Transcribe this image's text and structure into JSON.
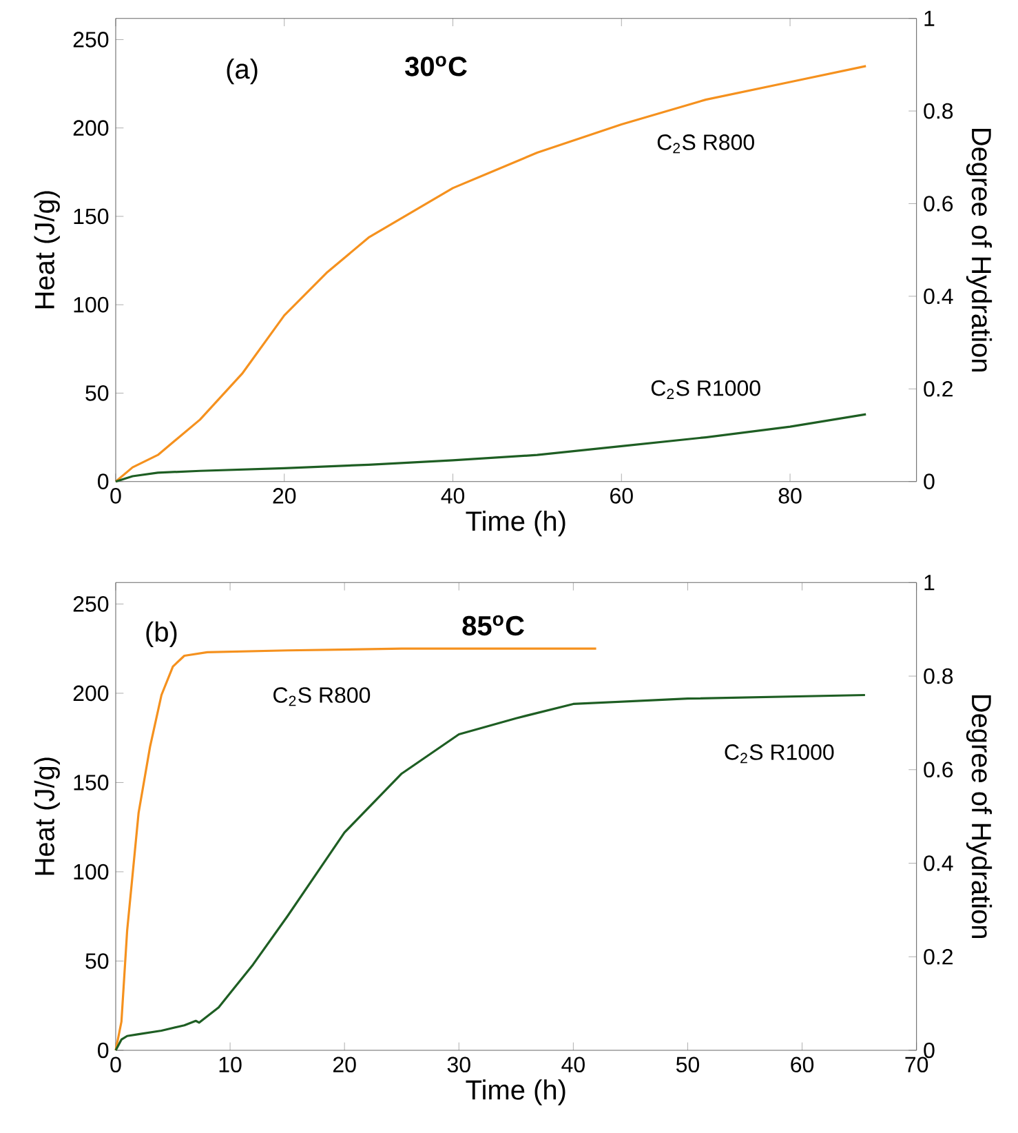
{
  "chart_data": [
    {
      "type": "line",
      "title": "30$^{o}$C",
      "annotations": [
        "(a)"
      ],
      "xlabel": "Time (h)",
      "ylabel": "Heat (J/g)",
      "y2label": "Degree of Hydration",
      "xlim": [
        0,
        95
      ],
      "ylim": [
        0,
        262
      ],
      "y2lim": [
        0,
        1
      ],
      "xticks": [
        0,
        20,
        40,
        60,
        80
      ],
      "yticks": [
        0,
        50,
        100,
        150,
        200,
        250
      ],
      "y2ticks": [
        0,
        0.2,
        0.4,
        0.6,
        0.8,
        1
      ],
      "series": [
        {
          "name": "C$_{2}$S R800",
          "color": "#f5911e",
          "x": [
            0,
            2,
            5,
            10,
            15,
            20,
            25,
            30,
            40,
            50,
            60,
            70,
            80,
            89
          ],
          "values": [
            0,
            8,
            15,
            35,
            61,
            94,
            118,
            138,
            166,
            186,
            202,
            216,
            226,
            235
          ]
        },
        {
          "name": "C$_{2}$S R1000",
          "color": "#1e5e23",
          "x": [
            0,
            2,
            5,
            10,
            20,
            30,
            40,
            50,
            60,
            70,
            80,
            89
          ],
          "values": [
            0,
            3,
            5,
            6,
            7.5,
            9.5,
            12,
            15,
            20,
            25,
            31,
            38
          ]
        }
      ]
    },
    {
      "type": "line",
      "title": "85$^{o}$C",
      "annotations": [
        "(b)"
      ],
      "xlabel": "Time (h)",
      "ylabel": "Heat (J/g)",
      "y2label": "Degree of Hydration",
      "xlim": [
        0,
        70
      ],
      "ylim": [
        0,
        262
      ],
      "y2lim": [
        0,
        1
      ],
      "xticks": [
        0,
        10,
        20,
        30,
        40,
        50,
        60,
        70
      ],
      "yticks": [
        0,
        50,
        100,
        150,
        200,
        250
      ],
      "y2ticks": [
        0,
        0.2,
        0.4,
        0.6,
        0.8,
        1
      ],
      "series": [
        {
          "name": "C$_{2}$S R800",
          "color": "#f5911e",
          "x": [
            0,
            0.5,
            1,
            2,
            3,
            4,
            5,
            6,
            8,
            15,
            25,
            42
          ],
          "values": [
            0,
            16,
            67,
            133,
            170,
            199,
            215,
            221,
            223,
            224,
            225,
            225
          ]
        },
        {
          "name": "C$_{2}$S R1000",
          "color": "#1e5e23",
          "x": [
            0,
            0.5,
            1,
            2,
            4,
            6,
            7,
            7.3,
            9,
            10,
            12,
            15,
            20,
            25,
            30,
            35,
            40,
            50,
            65.5
          ],
          "values": [
            0,
            6,
            8,
            9,
            11,
            14,
            16.5,
            15.5,
            24,
            32,
            48,
            75,
            122,
            155,
            177,
            186,
            194,
            197,
            199
          ]
        }
      ]
    }
  ]
}
